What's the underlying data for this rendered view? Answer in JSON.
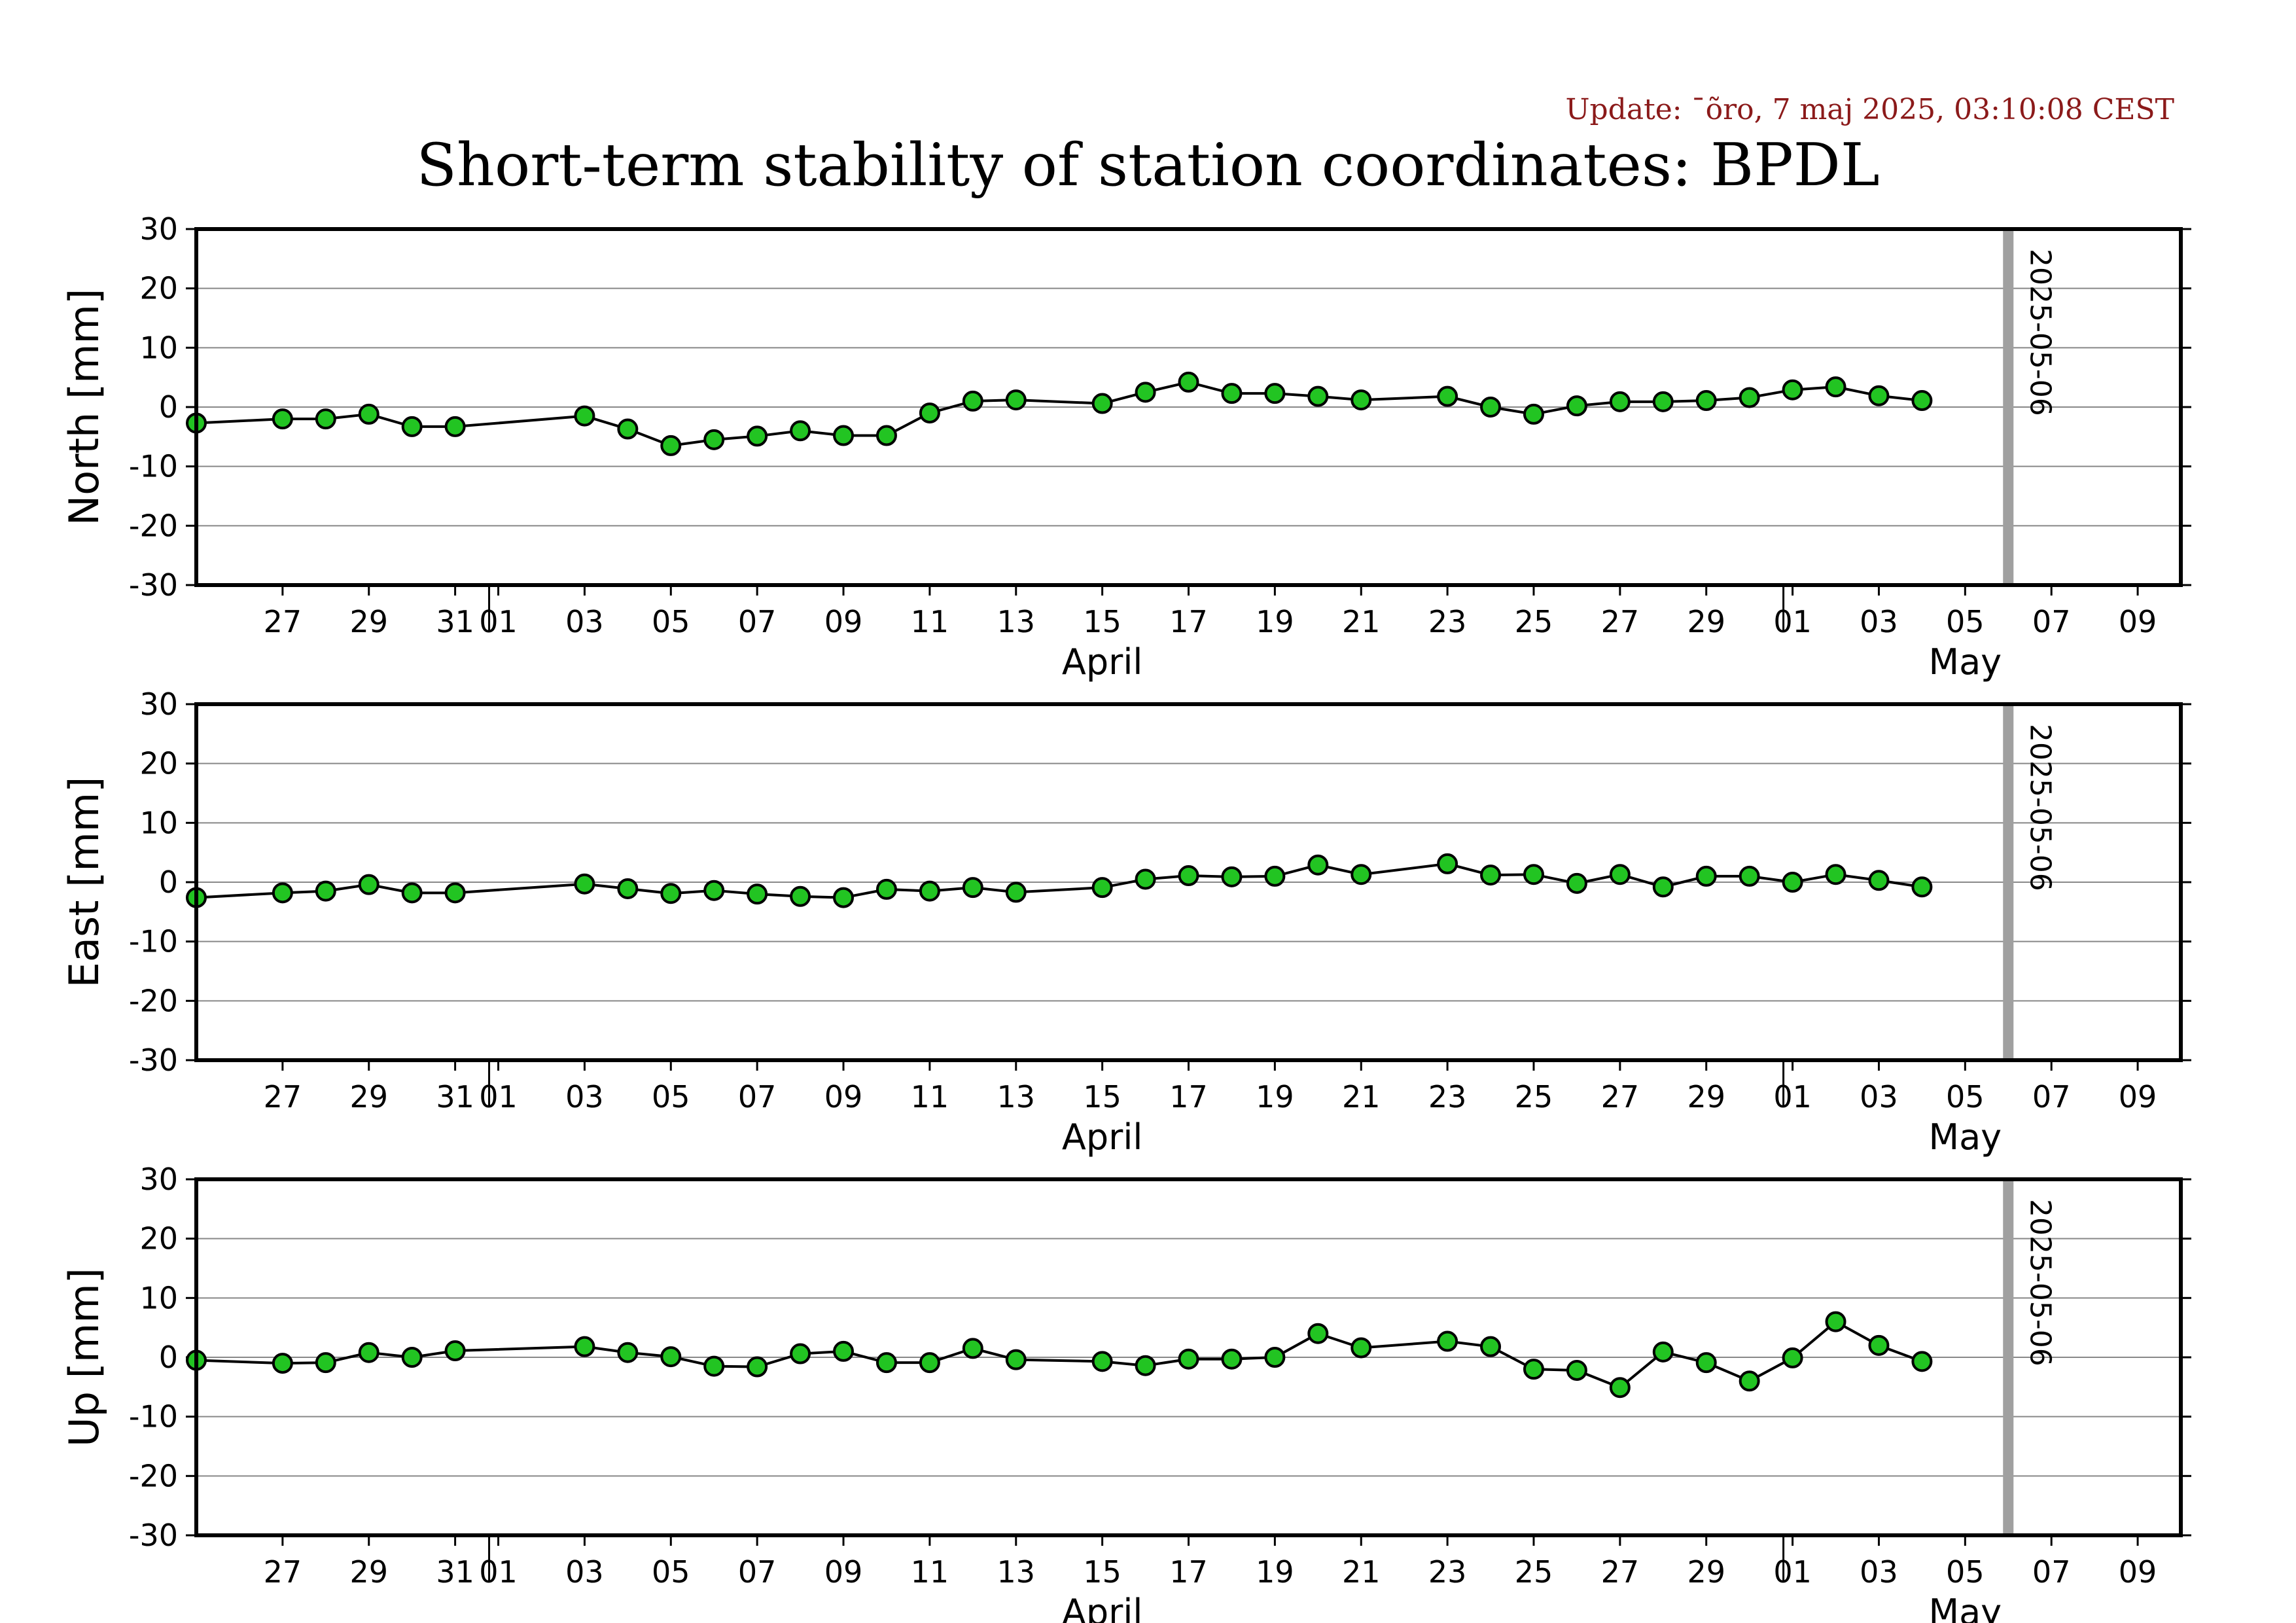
{
  "header": {
    "update": "Update: ¯õro, 7 maj 2025, 03:10:08 CEST",
    "title": "Short-term stability of station coordinates: BPDL"
  },
  "chart_data": {
    "type": "line",
    "x_range": [
      "2025-03-25",
      "2025-05-10"
    ],
    "ylim": [
      -30,
      30
    ],
    "yticks": [
      30,
      20,
      10,
      0,
      -10,
      -20,
      -30
    ],
    "x_tick_labels": [
      {
        "date": "2025-03-27",
        "label": "27"
      },
      {
        "date": "2025-03-29",
        "label": "29"
      },
      {
        "date": "2025-03-31",
        "label": "31"
      },
      {
        "date": "2025-04-01",
        "label": "01"
      },
      {
        "date": "2025-04-03",
        "label": "03"
      },
      {
        "date": "2025-04-05",
        "label": "05"
      },
      {
        "date": "2025-04-07",
        "label": "07"
      },
      {
        "date": "2025-04-09",
        "label": "09"
      },
      {
        "date": "2025-04-11",
        "label": "11"
      },
      {
        "date": "2025-04-13",
        "label": "13"
      },
      {
        "date": "2025-04-15",
        "label": "15"
      },
      {
        "date": "2025-04-17",
        "label": "17"
      },
      {
        "date": "2025-04-19",
        "label": "19"
      },
      {
        "date": "2025-04-21",
        "label": "21"
      },
      {
        "date": "2025-04-23",
        "label": "23"
      },
      {
        "date": "2025-04-25",
        "label": "25"
      },
      {
        "date": "2025-04-27",
        "label": "27"
      },
      {
        "date": "2025-04-29",
        "label": "29"
      },
      {
        "date": "2025-05-01",
        "label": "01"
      },
      {
        "date": "2025-05-03",
        "label": "03"
      },
      {
        "date": "2025-05-05",
        "label": "05"
      },
      {
        "date": "2025-05-07",
        "label": "07"
      },
      {
        "date": "2025-05-09",
        "label": "09"
      }
    ],
    "month_labels": [
      {
        "date": "2025-04-15",
        "label": "April"
      },
      {
        "date": "2025-05-05",
        "label": "May"
      }
    ],
    "month_boundaries": [
      "2025-04-01",
      "2025-05-01"
    ],
    "current_date_marker": {
      "date": "2025-05-06",
      "label": "2025-05-06",
      "color": "#a0a0a0"
    },
    "colors": {
      "marker_fill": "#22c422",
      "line": "#000000",
      "grid": "#888888",
      "update_text": "#8b1a1a"
    },
    "panels": [
      {
        "ylabel": "North [mm]",
        "dates": [
          "2025-03-25",
          "2025-03-27",
          "2025-03-28",
          "2025-03-29",
          "2025-03-30",
          "2025-03-31",
          "2025-04-03",
          "2025-04-04",
          "2025-04-05",
          "2025-04-06",
          "2025-04-07",
          "2025-04-08",
          "2025-04-09",
          "2025-04-10",
          "2025-04-11",
          "2025-04-12",
          "2025-04-13",
          "2025-04-15",
          "2025-04-16",
          "2025-04-17",
          "2025-04-18",
          "2025-04-19",
          "2025-04-20",
          "2025-04-21",
          "2025-04-23",
          "2025-04-24",
          "2025-04-25",
          "2025-04-26",
          "2025-04-27",
          "2025-04-28",
          "2025-04-29",
          "2025-04-30",
          "2025-05-01",
          "2025-05-02",
          "2025-05-03",
          "2025-05-04"
        ],
        "values": [
          -2.7,
          -2.0,
          -2.0,
          -1.2,
          -3.3,
          -3.3,
          -1.5,
          -3.7,
          -6.5,
          -5.5,
          -4.9,
          -4.0,
          -4.8,
          -4.8,
          -1.0,
          1.0,
          1.2,
          0.6,
          2.5,
          4.2,
          2.3,
          2.3,
          1.8,
          1.2,
          1.8,
          0.0,
          -1.2,
          0.2,
          0.9,
          0.9,
          1.1,
          1.6,
          2.9,
          3.4,
          1.9,
          1.1
        ]
      },
      {
        "ylabel": "East [mm]",
        "dates": [
          "2025-03-25",
          "2025-03-27",
          "2025-03-28",
          "2025-03-29",
          "2025-03-30",
          "2025-03-31",
          "2025-04-03",
          "2025-04-04",
          "2025-04-05",
          "2025-04-06",
          "2025-04-07",
          "2025-04-08",
          "2025-04-09",
          "2025-04-10",
          "2025-04-11",
          "2025-04-12",
          "2025-04-13",
          "2025-04-15",
          "2025-04-16",
          "2025-04-17",
          "2025-04-18",
          "2025-04-19",
          "2025-04-20",
          "2025-04-21",
          "2025-04-23",
          "2025-04-24",
          "2025-04-25",
          "2025-04-26",
          "2025-04-27",
          "2025-04-28",
          "2025-04-29",
          "2025-04-30",
          "2025-05-01",
          "2025-05-02",
          "2025-05-03",
          "2025-05-04"
        ],
        "values": [
          -2.6,
          -1.8,
          -1.5,
          -0.4,
          -1.8,
          -1.8,
          -0.3,
          -1.1,
          -1.9,
          -1.4,
          -2.0,
          -2.4,
          -2.6,
          -1.2,
          -1.5,
          -0.9,
          -1.7,
          -0.9,
          0.5,
          1.1,
          0.9,
          1.0,
          2.9,
          1.3,
          3.1,
          1.2,
          1.3,
          -0.2,
          1.3,
          -0.8,
          1.0,
          1.0,
          0.0,
          1.3,
          0.3,
          -0.8
        ]
      },
      {
        "ylabel": "Up [mm]",
        "dates": [
          "2025-03-25",
          "2025-03-27",
          "2025-03-28",
          "2025-03-29",
          "2025-03-30",
          "2025-03-31",
          "2025-04-03",
          "2025-04-04",
          "2025-04-05",
          "2025-04-06",
          "2025-04-07",
          "2025-04-08",
          "2025-04-09",
          "2025-04-10",
          "2025-04-11",
          "2025-04-12",
          "2025-04-13",
          "2025-04-15",
          "2025-04-16",
          "2025-04-17",
          "2025-04-18",
          "2025-04-19",
          "2025-04-20",
          "2025-04-21",
          "2025-04-23",
          "2025-04-24",
          "2025-04-25",
          "2025-04-26",
          "2025-04-27",
          "2025-04-28",
          "2025-04-29",
          "2025-04-30",
          "2025-05-01",
          "2025-05-02",
          "2025-05-03",
          "2025-05-04"
        ],
        "values": [
          -0.5,
          -1.0,
          -0.9,
          0.8,
          0.0,
          1.1,
          1.8,
          0.8,
          0.1,
          -1.5,
          -1.6,
          0.6,
          1.0,
          -0.9,
          -0.9,
          1.5,
          -0.4,
          -0.7,
          -1.4,
          -0.3,
          -0.3,
          0.0,
          4.0,
          1.6,
          2.7,
          1.8,
          -2.0,
          -2.2,
          -5.1,
          0.9,
          -0.9,
          -4.0,
          -0.1,
          6.0,
          2.0,
          -0.7
        ]
      }
    ]
  }
}
